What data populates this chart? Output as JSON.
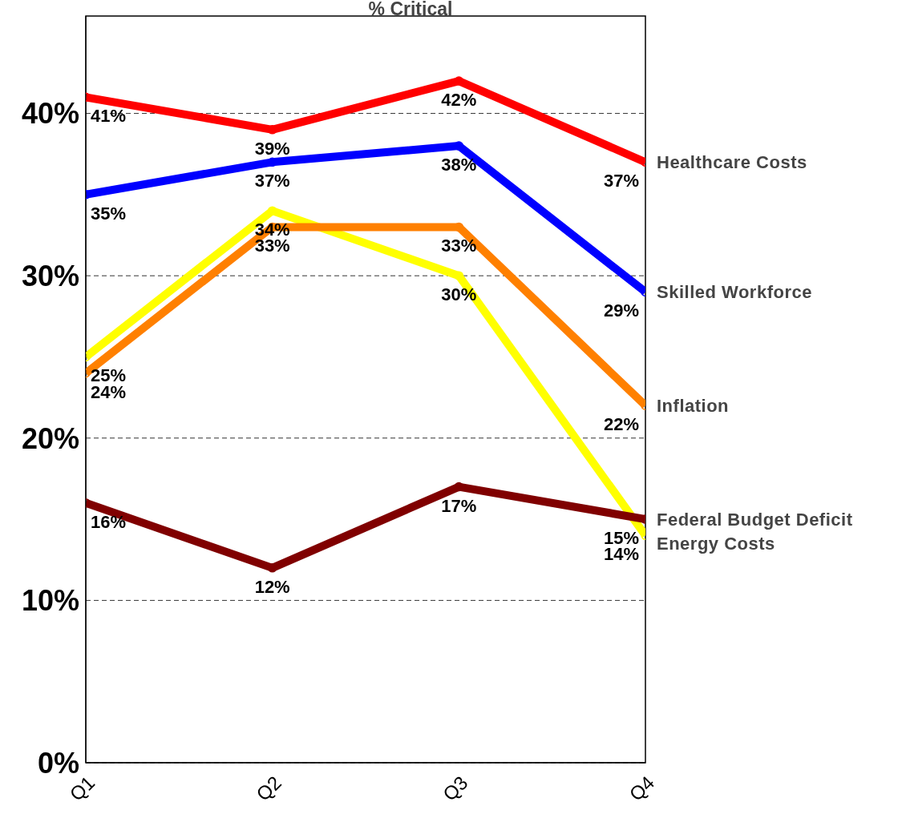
{
  "chart_data": {
    "type": "line",
    "title": "% Critical",
    "categories": [
      "Q1",
      "Q2",
      "Q3",
      "Q4"
    ],
    "series": [
      {
        "name": "Healthcare Costs",
        "color": "#ff0000",
        "values": [
          41,
          39,
          42,
          37
        ],
        "value_labels": [
          "41%",
          "39%",
          "42%",
          "37%"
        ]
      },
      {
        "name": "Skilled Workforce",
        "color": "#0000ff",
        "values": [
          35,
          37,
          38,
          29
        ],
        "value_labels": [
          "35%",
          "37%",
          "38%",
          "29%"
        ]
      },
      {
        "name": "Energy Costs",
        "color": "#ffff00",
        "values": [
          25,
          34,
          30,
          14
        ],
        "value_labels": [
          "25%",
          "34%",
          "30%",
          "14%"
        ]
      },
      {
        "name": "Inflation",
        "color": "#ff8000",
        "values": [
          24,
          33,
          33,
          22
        ],
        "value_labels": [
          "24%",
          "33%",
          "33%",
          "22%"
        ]
      },
      {
        "name": "Federal Budget Deficit",
        "color": "#800000",
        "values": [
          16,
          12,
          17,
          15
        ],
        "value_labels": [
          "16%",
          "12%",
          "17%",
          "15%"
        ]
      }
    ],
    "ylim": [
      0,
      46
    ],
    "yticks": [
      {
        "value": 0,
        "label": "0%"
      },
      {
        "value": 10,
        "label": "10%"
      },
      {
        "value": 20,
        "label": "20%"
      },
      {
        "value": 30,
        "label": "30%"
      },
      {
        "value": 40,
        "label": "40%"
      }
    ],
    "grid": "y",
    "legend": "right",
    "marker": "circle",
    "line_style": "solid"
  }
}
